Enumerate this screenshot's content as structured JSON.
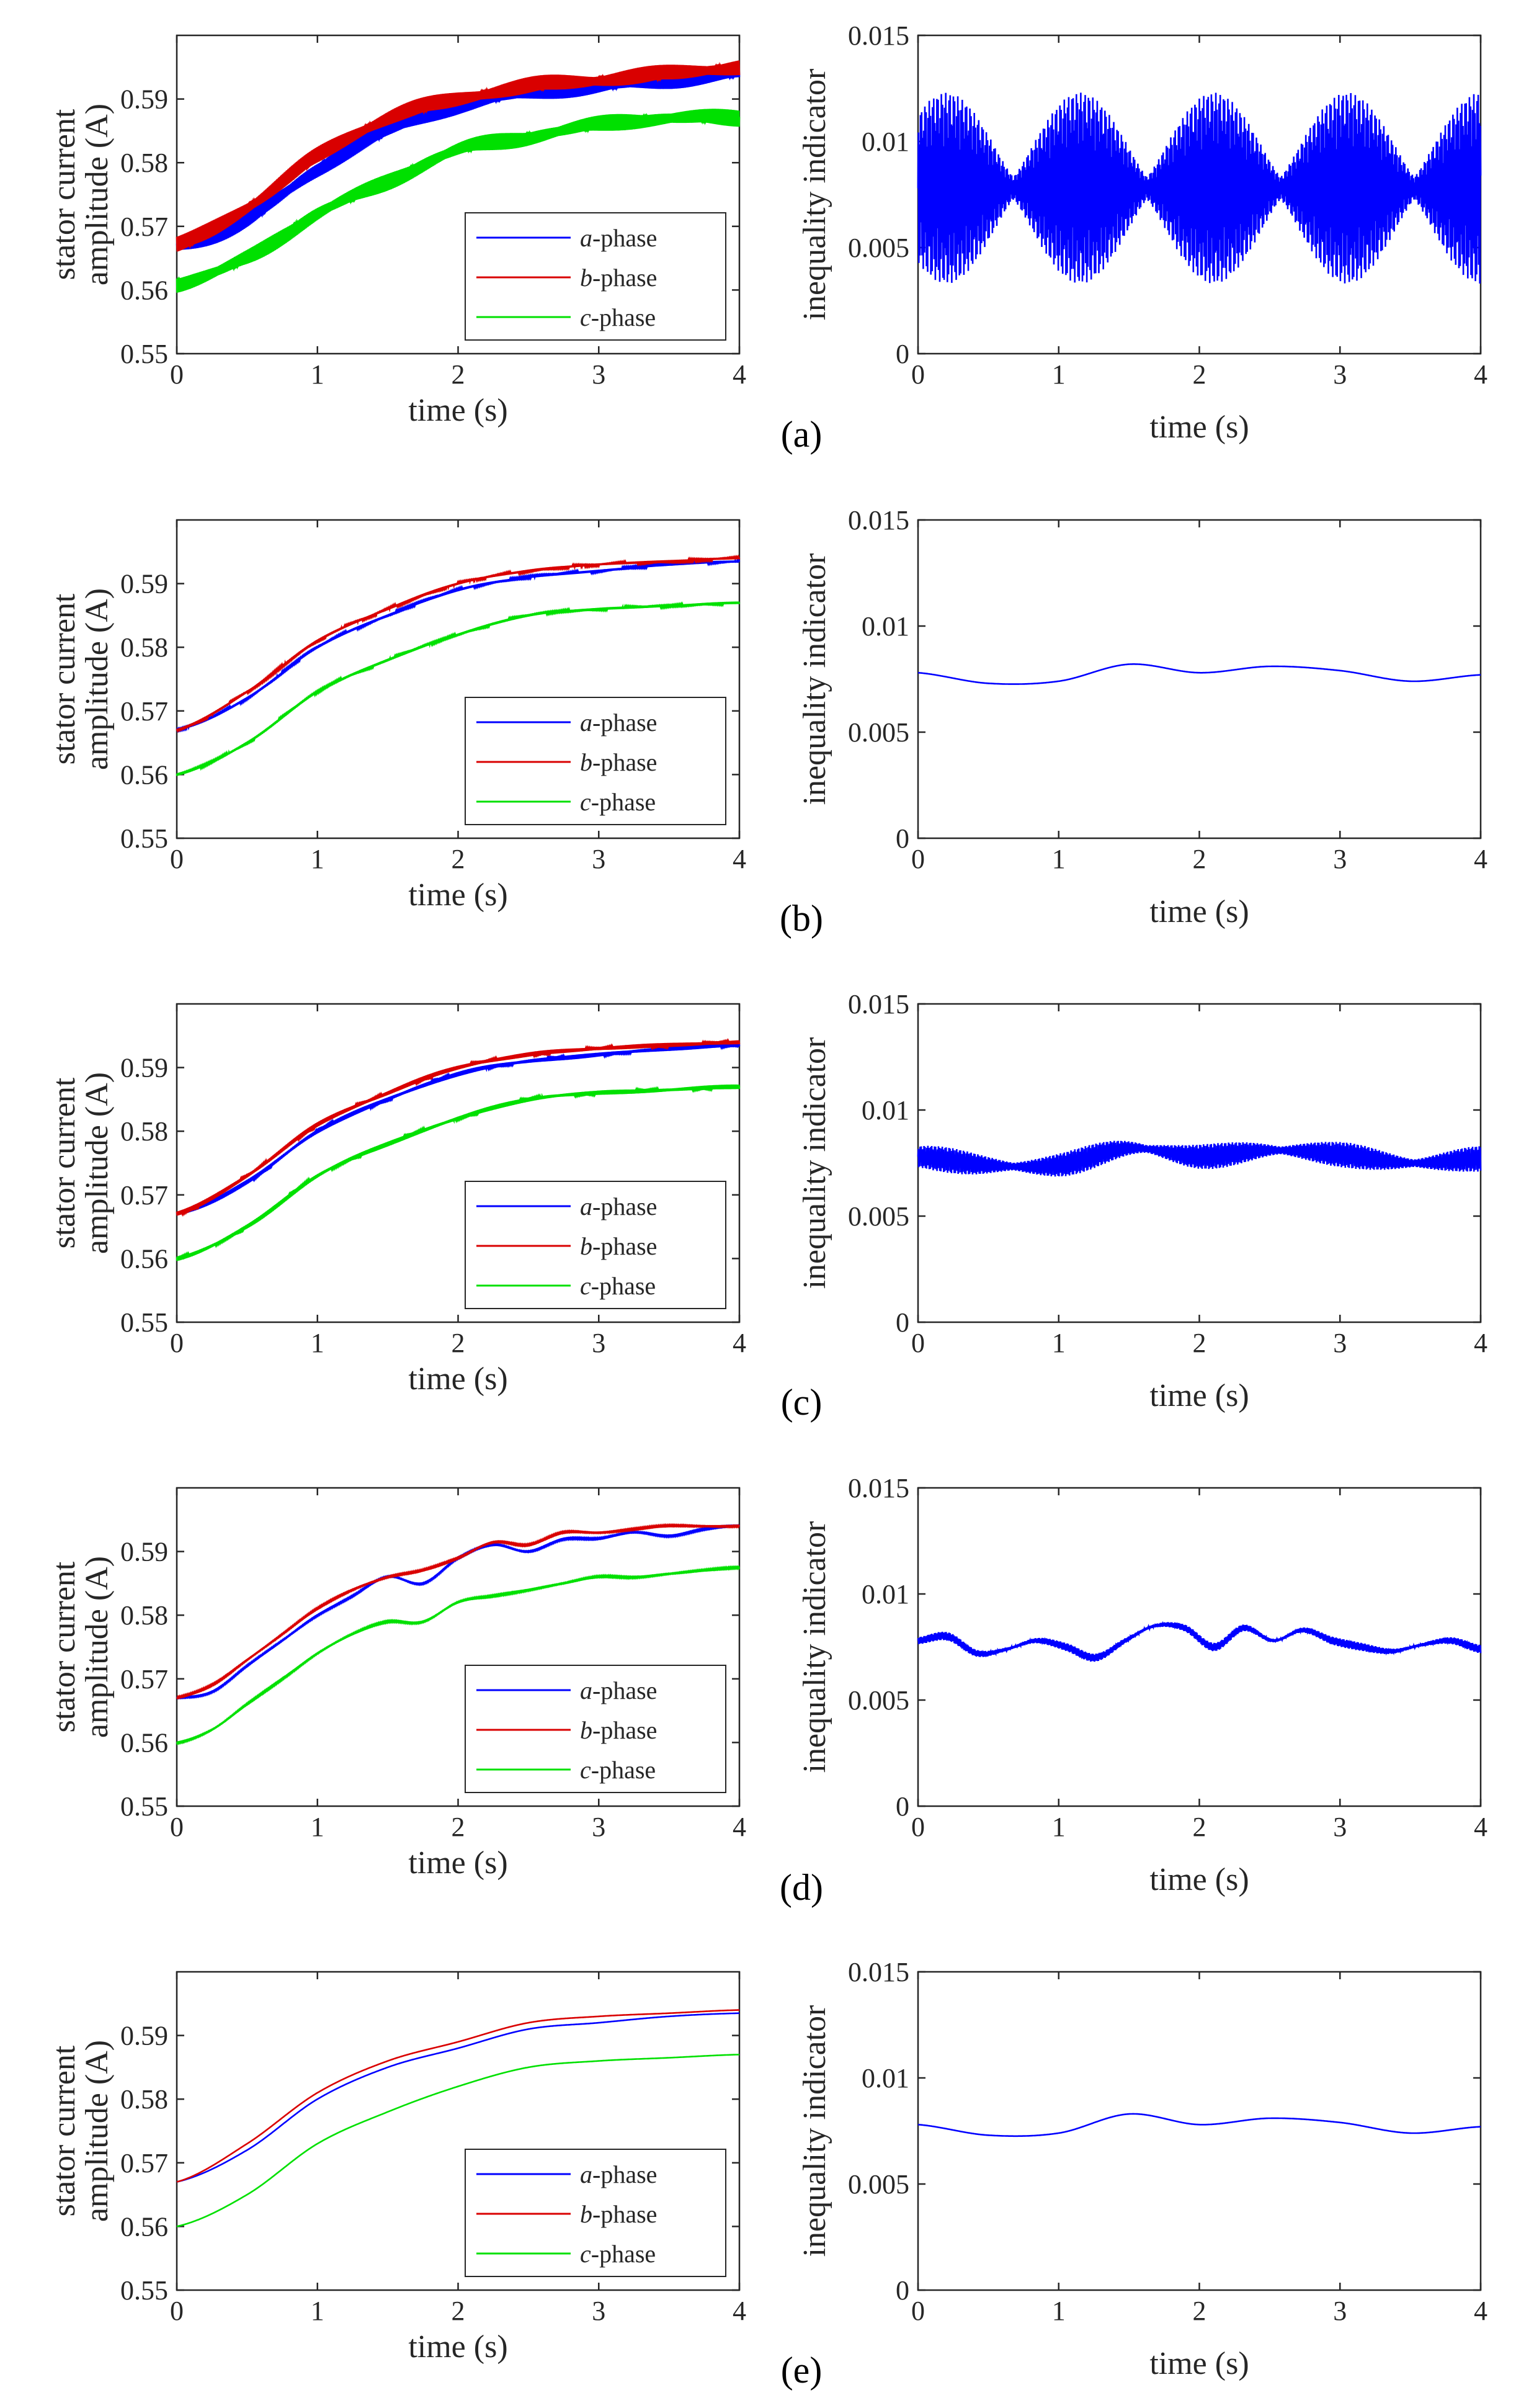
{
  "panel_labels": [
    "(a)",
    "(b)",
    "(c)",
    "(d)",
    "(e)"
  ],
  "legend_prefix": [
    "a",
    "b",
    "c"
  ],
  "legend_suffix": "-phase",
  "colors": {
    "a": "#0000ff",
    "b": "#d90000",
    "c": "#00e000"
  },
  "chart_data": [
    {
      "type": "line",
      "panel": "a",
      "side": "left",
      "xlabel": "time (s)",
      "ylabel": "stator current amplitude (A)",
      "xlim": [
        0,
        4
      ],
      "ylim": [
        0.55,
        0.6
      ],
      "xticks": [
        "0",
        "1",
        "2",
        "3",
        "4"
      ],
      "yticks": [
        "0.55",
        "0.56",
        "0.57",
        "0.58",
        "0.59"
      ],
      "grid": false,
      "legend": "bottom-right",
      "x": [
        0,
        0.5,
        1,
        1.5,
        2,
        2.5,
        3,
        3.5,
        4
      ],
      "series": [
        {
          "name": "a-phase",
          "values": [
            0.567,
            0.571,
            0.579,
            0.585,
            0.589,
            0.591,
            0.592,
            0.593,
            0.594
          ],
          "oscillation": 0.0015
        },
        {
          "name": "b-phase",
          "values": [
            0.567,
            0.573,
            0.581,
            0.587,
            0.59,
            0.592,
            0.593,
            0.594,
            0.595
          ],
          "oscillation": 0.0015
        },
        {
          "name": "c-phase",
          "values": [
            0.561,
            0.565,
            0.572,
            0.577,
            0.582,
            0.584,
            0.586,
            0.587,
            0.587
          ],
          "oscillation": 0.0015
        }
      ]
    },
    {
      "type": "line",
      "panel": "a",
      "side": "right",
      "xlabel": "time (s)",
      "ylabel": "inequality indicator",
      "xlim": [
        0,
        4
      ],
      "ylim": [
        0,
        0.015
      ],
      "xticks": [
        "0",
        "1",
        "2",
        "3",
        "4"
      ],
      "yticks": [
        "0",
        "0.005",
        "0.01",
        "0.015"
      ],
      "grid": false,
      "baseline": 0.0078,
      "oscillation": 0.0045,
      "series": [
        {
          "values": [
            0.0078,
            0.0074,
            0.0078,
            0.0082,
            0.008,
            0.0079,
            0.0076,
            0.0077,
            0.0078
          ]
        }
      ]
    },
    {
      "type": "line",
      "panel": "b",
      "side": "left",
      "xlabel": "time (s)",
      "ylabel": "stator current amplitude (A)",
      "xlim": [
        0,
        4
      ],
      "ylim": [
        0.55,
        0.6
      ],
      "xticks": [
        "0",
        "1",
        "2",
        "3",
        "4"
      ],
      "yticks": [
        "0.55",
        "0.56",
        "0.57",
        "0.58",
        "0.59"
      ],
      "grid": false,
      "legend": "bottom-right",
      "x": [
        0,
        0.5,
        1,
        1.5,
        2,
        2.5,
        3,
        3.5,
        4
      ],
      "series": [
        {
          "name": "a-phase",
          "values": [
            0.567,
            0.572,
            0.58,
            0.585,
            0.589,
            0.591,
            0.592,
            0.593,
            0.5935
          ],
          "oscillation": 0.0002
        },
        {
          "name": "b-phase",
          "values": [
            0.567,
            0.573,
            0.581,
            0.586,
            0.59,
            0.592,
            0.593,
            0.5935,
            0.594
          ],
          "oscillation": 0.0002
        },
        {
          "name": "c-phase",
          "values": [
            0.56,
            0.565,
            0.573,
            0.578,
            0.582,
            0.585,
            0.586,
            0.5865,
            0.587
          ],
          "oscillation": 0.0002
        }
      ]
    },
    {
      "type": "line",
      "panel": "b",
      "side": "right",
      "xlabel": "time (s)",
      "ylabel": "inequality indicator",
      "xlim": [
        0,
        4
      ],
      "ylim": [
        0,
        0.015
      ],
      "xticks": [
        "0",
        "1",
        "2",
        "3",
        "4"
      ],
      "yticks": [
        "0",
        "0.005",
        "0.01",
        "0.015"
      ],
      "grid": false,
      "oscillation": 0,
      "series": [
        {
          "values": [
            0.0078,
            0.0073,
            0.0074,
            0.0082,
            0.0078,
            0.0081,
            0.0079,
            0.0074,
            0.0077
          ]
        }
      ]
    },
    {
      "type": "line",
      "panel": "c",
      "side": "left",
      "xlabel": "time (s)",
      "ylabel": "stator current amplitude (A)",
      "xlim": [
        0,
        4
      ],
      "ylim": [
        0.55,
        0.6
      ],
      "xticks": [
        "0",
        "1",
        "2",
        "3",
        "4"
      ],
      "yticks": [
        "0.55",
        "0.56",
        "0.57",
        "0.58",
        "0.59"
      ],
      "grid": false,
      "legend": "bottom-right",
      "x": [
        0,
        0.5,
        1,
        1.5,
        2,
        2.5,
        3,
        3.5,
        4
      ],
      "series": [
        {
          "name": "a-phase",
          "values": [
            0.567,
            0.572,
            0.58,
            0.585,
            0.589,
            0.591,
            0.592,
            0.593,
            0.5935
          ],
          "oscillation": 0.0004
        },
        {
          "name": "b-phase",
          "values": [
            0.567,
            0.573,
            0.581,
            0.586,
            0.59,
            0.592,
            0.593,
            0.5935,
            0.594
          ],
          "oscillation": 0.0004
        },
        {
          "name": "c-phase",
          "values": [
            0.56,
            0.565,
            0.573,
            0.578,
            0.582,
            0.585,
            0.586,
            0.5865,
            0.587
          ],
          "oscillation": 0.0004
        }
      ]
    },
    {
      "type": "line",
      "panel": "c",
      "side": "right",
      "xlabel": "time (s)",
      "ylabel": "inequality indicator",
      "xlim": [
        0,
        4
      ],
      "ylim": [
        0,
        0.015
      ],
      "xticks": [
        "0",
        "1",
        "2",
        "3",
        "4"
      ],
      "yticks": [
        "0",
        "0.005",
        "0.01",
        "0.015"
      ],
      "grid": false,
      "oscillation": 0.0006,
      "series": [
        {
          "values": [
            0.0078,
            0.0074,
            0.0074,
            0.0082,
            0.0078,
            0.0081,
            0.0079,
            0.0075,
            0.0077
          ]
        }
      ]
    },
    {
      "type": "line",
      "panel": "d",
      "side": "left",
      "xlabel": "time (s)",
      "ylabel": "stator current amplitude (A)",
      "xlim": [
        0,
        4
      ],
      "ylim": [
        0.55,
        0.6
      ],
      "xticks": [
        "0",
        "1",
        "2",
        "3",
        "4"
      ],
      "yticks": [
        "0.55",
        "0.56",
        "0.57",
        "0.58",
        "0.59"
      ],
      "grid": false,
      "legend": "bottom-right",
      "x": [
        0,
        0.25,
        0.5,
        0.75,
        1,
        1.25,
        1.5,
        1.75,
        2,
        2.25,
        2.5,
        2.75,
        3,
        3.25,
        3.5,
        3.75,
        4
      ],
      "series": [
        {
          "name": "a-phase",
          "values": [
            0.567,
            0.568,
            0.572,
            0.576,
            0.58,
            0.583,
            0.586,
            0.585,
            0.589,
            0.591,
            0.59,
            0.592,
            0.592,
            0.593,
            0.5925,
            0.5935,
            0.594
          ],
          "oscillation": 0.0001
        },
        {
          "name": "b-phase",
          "values": [
            0.567,
            0.569,
            0.573,
            0.577,
            0.581,
            0.584,
            0.586,
            0.587,
            0.589,
            0.5915,
            0.591,
            0.593,
            0.593,
            0.5935,
            0.594,
            0.594,
            0.594
          ],
          "oscillation": 0.0001
        },
        {
          "name": "c-phase",
          "values": [
            0.56,
            0.562,
            0.566,
            0.57,
            0.574,
            0.577,
            0.579,
            0.579,
            0.582,
            0.583,
            0.584,
            0.585,
            0.586,
            0.586,
            0.5865,
            0.587,
            0.5875
          ],
          "oscillation": 0.0001
        }
      ]
    },
    {
      "type": "line",
      "panel": "d",
      "side": "right",
      "xlabel": "time (s)",
      "ylabel": "inequality indicator",
      "xlim": [
        0,
        4
      ],
      "ylim": [
        0,
        0.015
      ],
      "xticks": [
        "0",
        "1",
        "2",
        "3",
        "4"
      ],
      "yticks": [
        "0",
        "0.005",
        "0.01",
        "0.015"
      ],
      "grid": false,
      "oscillation": 0.0002,
      "series": [
        {
          "values": [
            0.0078,
            0.008,
            0.0072,
            0.0074,
            0.0078,
            0.0075,
            0.007,
            0.0078,
            0.0085,
            0.0084,
            0.0075,
            0.0084,
            0.0078,
            0.0083,
            0.0078,
            0.0075,
            0.0073,
            0.0076,
            0.0078,
            0.0074
          ]
        }
      ]
    },
    {
      "type": "line",
      "panel": "e",
      "side": "left",
      "xlabel": "time (s)",
      "ylabel": "stator current amplitude (A)",
      "xlim": [
        0,
        4
      ],
      "ylim": [
        0.55,
        0.6
      ],
      "xticks": [
        "0",
        "1",
        "2",
        "3",
        "4"
      ],
      "yticks": [
        "0.55",
        "0.56",
        "0.57",
        "0.58",
        "0.59"
      ],
      "grid": false,
      "legend": "bottom-right",
      "x": [
        0,
        0.5,
        1,
        1.5,
        2,
        2.5,
        3,
        3.5,
        4
      ],
      "series": [
        {
          "name": "a-phase",
          "values": [
            0.567,
            0.572,
            0.58,
            0.585,
            0.588,
            0.591,
            0.592,
            0.593,
            0.5935
          ],
          "oscillation": 0
        },
        {
          "name": "b-phase",
          "values": [
            0.567,
            0.573,
            0.581,
            0.586,
            0.589,
            0.592,
            0.593,
            0.5935,
            0.594
          ],
          "oscillation": 0
        },
        {
          "name": "c-phase",
          "values": [
            0.56,
            0.565,
            0.573,
            0.578,
            0.582,
            0.585,
            0.586,
            0.5865,
            0.587
          ],
          "oscillation": 0
        }
      ]
    },
    {
      "type": "line",
      "panel": "e",
      "side": "right",
      "xlabel": "time (s)",
      "ylabel": "inequality indicator",
      "xlim": [
        0,
        4
      ],
      "ylim": [
        0,
        0.015
      ],
      "xticks": [
        "0",
        "1",
        "2",
        "3",
        "4"
      ],
      "yticks": [
        "0",
        "0.005",
        "0.01",
        "0.015"
      ],
      "grid": false,
      "oscillation": 0,
      "series": [
        {
          "values": [
            0.0078,
            0.0073,
            0.0074,
            0.0083,
            0.0078,
            0.0081,
            0.0079,
            0.0074,
            0.0077
          ]
        }
      ]
    }
  ]
}
